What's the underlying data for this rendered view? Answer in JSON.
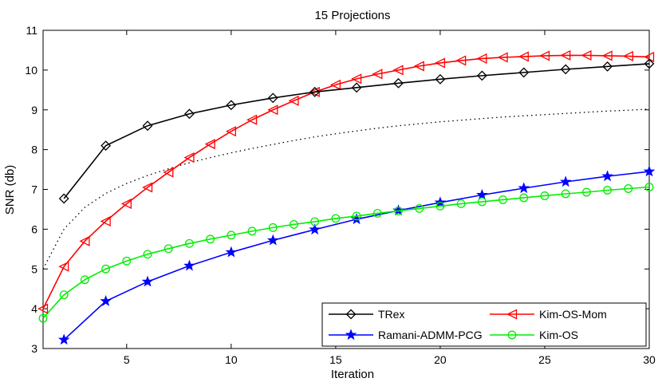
{
  "chart_data": {
    "type": "line",
    "title": "15 Projections",
    "xlabel": "Iteration",
    "ylabel": "SNR (db)",
    "xlim": [
      1,
      30
    ],
    "ylim": [
      3,
      11
    ],
    "xticks": [
      5,
      10,
      15,
      20,
      25,
      30
    ],
    "yticks": [
      3,
      4,
      5,
      6,
      7,
      8,
      9,
      10,
      11
    ],
    "grid": false,
    "legend_location": "bottom-right",
    "series": [
      {
        "name": "TRex",
        "color": "#000000",
        "marker": "diamond",
        "x": [
          2,
          4,
          6,
          8,
          10,
          12,
          14,
          16,
          18,
          20,
          22,
          24,
          26,
          28,
          30
        ],
        "values": [
          6.77,
          8.1,
          8.6,
          8.9,
          9.12,
          9.3,
          9.45,
          9.56,
          9.67,
          9.77,
          9.86,
          9.94,
          10.02,
          10.09,
          10.16
        ]
      },
      {
        "name": "Kim-OS-Mom",
        "color": "#ff0000",
        "marker": "triangle-left",
        "x": [
          1,
          2,
          3,
          4,
          5,
          6,
          7,
          8,
          9,
          10,
          11,
          12,
          13,
          14,
          15,
          16,
          17,
          18,
          19,
          20,
          21,
          22,
          23,
          24,
          25,
          26,
          27,
          28,
          29,
          30
        ],
        "values": [
          4.0,
          5.06,
          5.7,
          6.2,
          6.64,
          7.05,
          7.43,
          7.8,
          8.14,
          8.46,
          8.75,
          9.0,
          9.23,
          9.45,
          9.63,
          9.78,
          9.9,
          10.0,
          10.1,
          10.18,
          10.24,
          10.29,
          10.32,
          10.34,
          10.36,
          10.37,
          10.37,
          10.36,
          10.35,
          10.33
        ]
      },
      {
        "name": "Ramani-ADMM-PCG",
        "color": "#0000ff",
        "marker": "star",
        "x": [
          2,
          4,
          6,
          8,
          10,
          12,
          14,
          16,
          18,
          20,
          22,
          24,
          26,
          28,
          30
        ],
        "values": [
          3.22,
          4.19,
          4.68,
          5.08,
          5.42,
          5.72,
          5.99,
          6.25,
          6.47,
          6.67,
          6.86,
          7.03,
          7.19,
          7.33,
          7.45
        ]
      },
      {
        "name": "Kim-OS",
        "color": "#00ee00",
        "marker": "circle",
        "x": [
          1,
          2,
          3,
          4,
          5,
          6,
          7,
          8,
          9,
          10,
          11,
          12,
          13,
          14,
          15,
          16,
          17,
          18,
          19,
          20,
          21,
          22,
          23,
          24,
          25,
          26,
          27,
          28,
          29,
          30
        ],
        "values": [
          3.76,
          4.35,
          4.73,
          5.0,
          5.2,
          5.37,
          5.51,
          5.64,
          5.75,
          5.85,
          5.95,
          6.04,
          6.12,
          6.19,
          6.27,
          6.33,
          6.4,
          6.46,
          6.52,
          6.58,
          6.64,
          6.69,
          6.74,
          6.79,
          6.84,
          6.89,
          6.93,
          6.98,
          7.02,
          7.06
        ]
      },
      {
        "name": "",
        "color": "#000000",
        "marker": "none",
        "linestyle": "dotted",
        "x": [
          1,
          2,
          3,
          4,
          5,
          6,
          7,
          8,
          9,
          10,
          11,
          12,
          13,
          14,
          15,
          16,
          17,
          18,
          19,
          20,
          21,
          22,
          23,
          24,
          25,
          26,
          27,
          28,
          29,
          30
        ],
        "values": [
          5.0,
          6.0,
          6.55,
          6.9,
          7.15,
          7.35,
          7.52,
          7.67,
          7.8,
          7.92,
          8.03,
          8.13,
          8.23,
          8.32,
          8.4,
          8.47,
          8.54,
          8.6,
          8.65,
          8.7,
          8.74,
          8.78,
          8.82,
          8.85,
          8.88,
          8.91,
          8.94,
          8.97,
          8.99,
          9.02
        ]
      }
    ],
    "legend": [
      {
        "name": "TRex",
        "color": "#000000",
        "marker": "diamond"
      },
      {
        "name": "Kim-OS-Mom",
        "color": "#ff0000",
        "marker": "triangle-left"
      },
      {
        "name": "Ramani-ADMM-PCG",
        "color": "#0000ff",
        "marker": "star"
      },
      {
        "name": "Kim-OS",
        "color": "#00ee00",
        "marker": "circle"
      }
    ]
  }
}
